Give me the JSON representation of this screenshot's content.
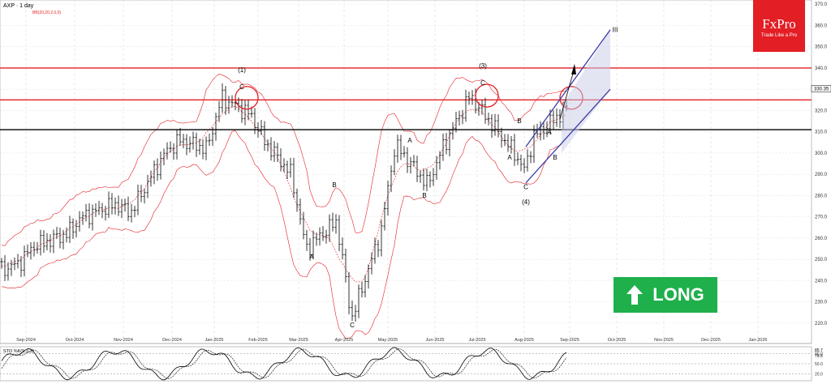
{
  "header": {
    "title": "AXP · 1 day",
    "indicator": "BB(20,20,2,0,0)"
  },
  "logo": {
    "brand": "FxPro",
    "tagline": "Trade Like a Pro"
  },
  "signal": {
    "label": "LONG",
    "icon": "up-arrow-icon",
    "color": "#1fb04b"
  },
  "colors": {
    "resistance": "#e31e24",
    "support": "#000000",
    "channel": "#3a3aa8",
    "bands": "#e31e24",
    "stoch": "#000000"
  },
  "chart_data": {
    "type": "candlestick",
    "price_axis": {
      "ticks": [
        370,
        360,
        350,
        340,
        330,
        320,
        310,
        300,
        290,
        280,
        270,
        260,
        250,
        240,
        230,
        220
      ],
      "ylim": [
        215,
        372
      ],
      "current_price_label": "330.35"
    },
    "time_axis": {
      "labels": [
        "Sep-2024",
        "Oct-2024",
        "Nov-2024",
        "Dec-2024",
        "Jan-2025",
        "Feb-2025",
        "Mar-2025",
        "Apr-2025",
        "May-2025",
        "Jun-2025",
        "Jul-2025",
        "Aug-2025",
        "Sep-2025",
        "Oct-2025",
        "Nov-2025",
        "Dec-2025",
        "Jan-2026"
      ]
    },
    "levels": [
      {
        "name": "resistance-upper",
        "value": 340
      },
      {
        "name": "resistance",
        "value": 325
      },
      {
        "name": "support",
        "value": 311
      }
    ],
    "wave_labels": [
      "(1)",
      "C",
      "(3)",
      "C",
      "A",
      "B",
      "A",
      "B",
      "C",
      "A",
      "B",
      "A",
      "B",
      "C",
      "(4)",
      "A",
      "B",
      "III"
    ],
    "price_path": [
      {
        "t": "Sep-2024",
        "p": 248
      },
      {
        "t": "Sep-2024",
        "p": 256
      },
      {
        "t": "Oct-2024",
        "p": 262
      },
      {
        "t": "Oct-2024",
        "p": 270
      },
      {
        "t": "Nov-2024",
        "p": 276
      },
      {
        "t": "Nov-2024",
        "p": 272
      },
      {
        "t": "Dec-2024",
        "p": 300
      },
      {
        "t": "Dec-2024",
        "p": 306
      },
      {
        "t": "Jan-2025",
        "p": 302
      },
      {
        "t": "Jan-2025",
        "p": 326
      },
      {
        "t": "Feb-2025",
        "p": 318
      },
      {
        "t": "Feb-2025",
        "p": 305
      },
      {
        "t": "Mar-2025",
        "p": 290
      },
      {
        "t": "Mar-2025",
        "p": 255
      },
      {
        "t": "Apr-2025",
        "p": 268
      },
      {
        "t": "Apr-2025",
        "p": 222
      },
      {
        "t": "May-2025",
        "p": 262
      },
      {
        "t": "May-2025",
        "p": 304
      },
      {
        "t": "Jun-2025",
        "p": 285
      },
      {
        "t": "Jun-2025",
        "p": 302
      },
      {
        "t": "Jul-2025",
        "p": 327
      },
      {
        "t": "Jul-2025",
        "p": 318
      },
      {
        "t": "Aug-2025",
        "p": 300
      },
      {
        "t": "Aug-2025",
        "p": 292
      },
      {
        "t": "Aug-2025",
        "p": 308
      },
      {
        "t": "Sep-2025",
        "p": 322
      }
    ],
    "stochastic": {
      "label": "STO %K(9,3,3)",
      "levels": [
        80,
        50,
        20
      ],
      "readings": [
        "85.7",
        "79.5"
      ]
    }
  }
}
